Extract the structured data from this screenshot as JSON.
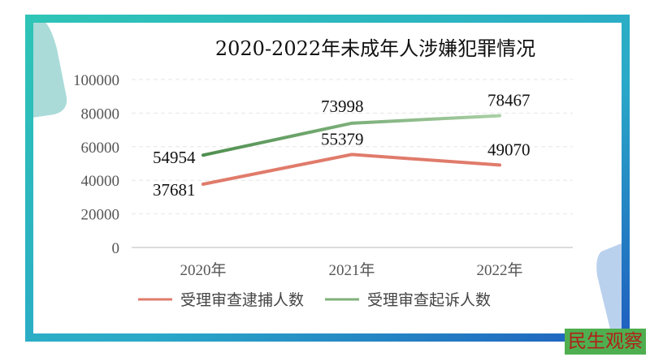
{
  "watermark": "民生观察",
  "colors": {
    "arrest": "#e07b6b",
    "prosecute_start": "#4f8f4f",
    "prosecute_end": "#a9cfa4",
    "frame_start": "#2ec4b6",
    "frame_end": "#1f5fbf"
  },
  "chart_data": {
    "type": "line",
    "title": "2020-2022年未成年人涉嫌犯罪情况",
    "categories": [
      "2020年",
      "2021年",
      "2022年"
    ],
    "yticks": [
      "0",
      "20000",
      "40000",
      "60000",
      "80000",
      "100000"
    ],
    "ylim": [
      0,
      100000
    ],
    "grid": true,
    "legend_position": "bottom",
    "series": [
      {
        "name": "受理审查逮捕人数",
        "values": [
          37681,
          55379,
          49070
        ],
        "labels": [
          "37681",
          "55379",
          "49070"
        ]
      },
      {
        "name": "受理审查起诉人数",
        "values": [
          54954,
          73998,
          78467
        ],
        "labels": [
          "54954",
          "73998",
          "78467"
        ]
      }
    ]
  }
}
